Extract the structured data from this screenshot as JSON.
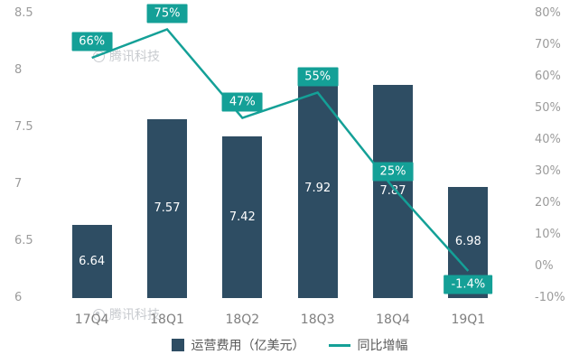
{
  "chart_data": {
    "type": "bar+line",
    "title": "",
    "categories": [
      "17Q4",
      "18Q1",
      "18Q2",
      "18Q3",
      "18Q4",
      "19Q1"
    ],
    "series": [
      {
        "name": "运营费用（亿美元）",
        "type": "bar",
        "axis": "left",
        "color": "#2e4d63",
        "values": [
          6.64,
          7.57,
          7.42,
          7.92,
          7.87,
          6.98
        ],
        "value_labels": [
          "6.64",
          "7.57",
          "7.42",
          "7.92",
          "7.87",
          "6.98"
        ]
      },
      {
        "name": "同比增幅",
        "type": "line",
        "axis": "right",
        "color": "#14a097",
        "values": [
          66,
          75,
          47,
          55,
          25,
          -1.4
        ],
        "value_labels": [
          "66%",
          "75%",
          "47%",
          "55%",
          "25%",
          "-1.4%"
        ]
      }
    ],
    "left_axis": {
      "min": 6,
      "max": 8.5,
      "tick_values": [
        6,
        6.5,
        7,
        7.5,
        8,
        8.5
      ],
      "tick_labels": [
        "6",
        "6.5",
        "7",
        "7.5",
        "8",
        "8.5"
      ]
    },
    "right_axis": {
      "min": -10,
      "max": 80,
      "tick_values": [
        -10,
        0,
        10,
        20,
        30,
        40,
        50,
        60,
        70,
        80
      ],
      "tick_labels": [
        "-10%",
        "0%",
        "10%",
        "20%",
        "30%",
        "40%",
        "50%",
        "60%",
        "70%",
        "80%"
      ]
    },
    "legend_position": "bottom",
    "grid": false,
    "watermark": "腾讯科技",
    "colors": {
      "bar": "#2e4d63",
      "line": "#14a097",
      "point_label_box": "#14a097",
      "axis_text": "#9b9b9b",
      "category_text": "#7f7f7f",
      "legend_text": "#595959",
      "bar_value_text": "#ffffff",
      "watermark_text": "#b6bac0"
    }
  }
}
